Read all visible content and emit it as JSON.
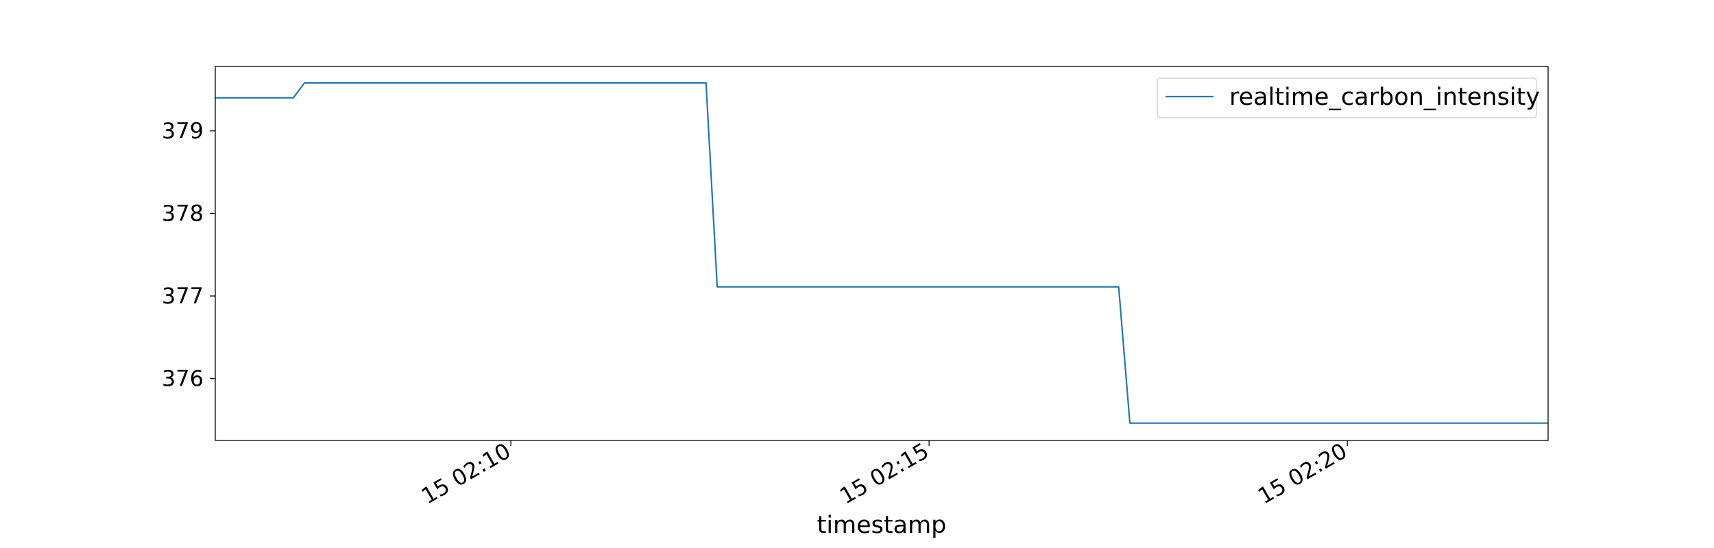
{
  "chart_data": {
    "type": "line",
    "title": "",
    "xlabel": "timestamp",
    "ylabel": "",
    "x_ticks": [
      "15 02:10",
      "15 02:15",
      "15 02:20"
    ],
    "x_tick_values": [
      "02:10",
      "02:15",
      "02:20"
    ],
    "y_ticks": [
      376,
      377,
      378,
      379
    ],
    "xlim": [
      "02:06:28",
      "02:22:24"
    ],
    "ylim": [
      375.25,
      379.78
    ],
    "grid": false,
    "legend": "top-right",
    "series": [
      {
        "name": "realtime_carbon_intensity",
        "color": "#1f77b4",
        "x": [
          "02:06:28",
          "02:07:24",
          "02:07:32",
          "02:12:20",
          "02:12:28",
          "02:17:16",
          "02:17:24",
          "02:22:24"
        ],
        "y": [
          379.4,
          379.4,
          379.58,
          379.58,
          377.11,
          377.11,
          375.46,
          375.46
        ]
      }
    ]
  }
}
